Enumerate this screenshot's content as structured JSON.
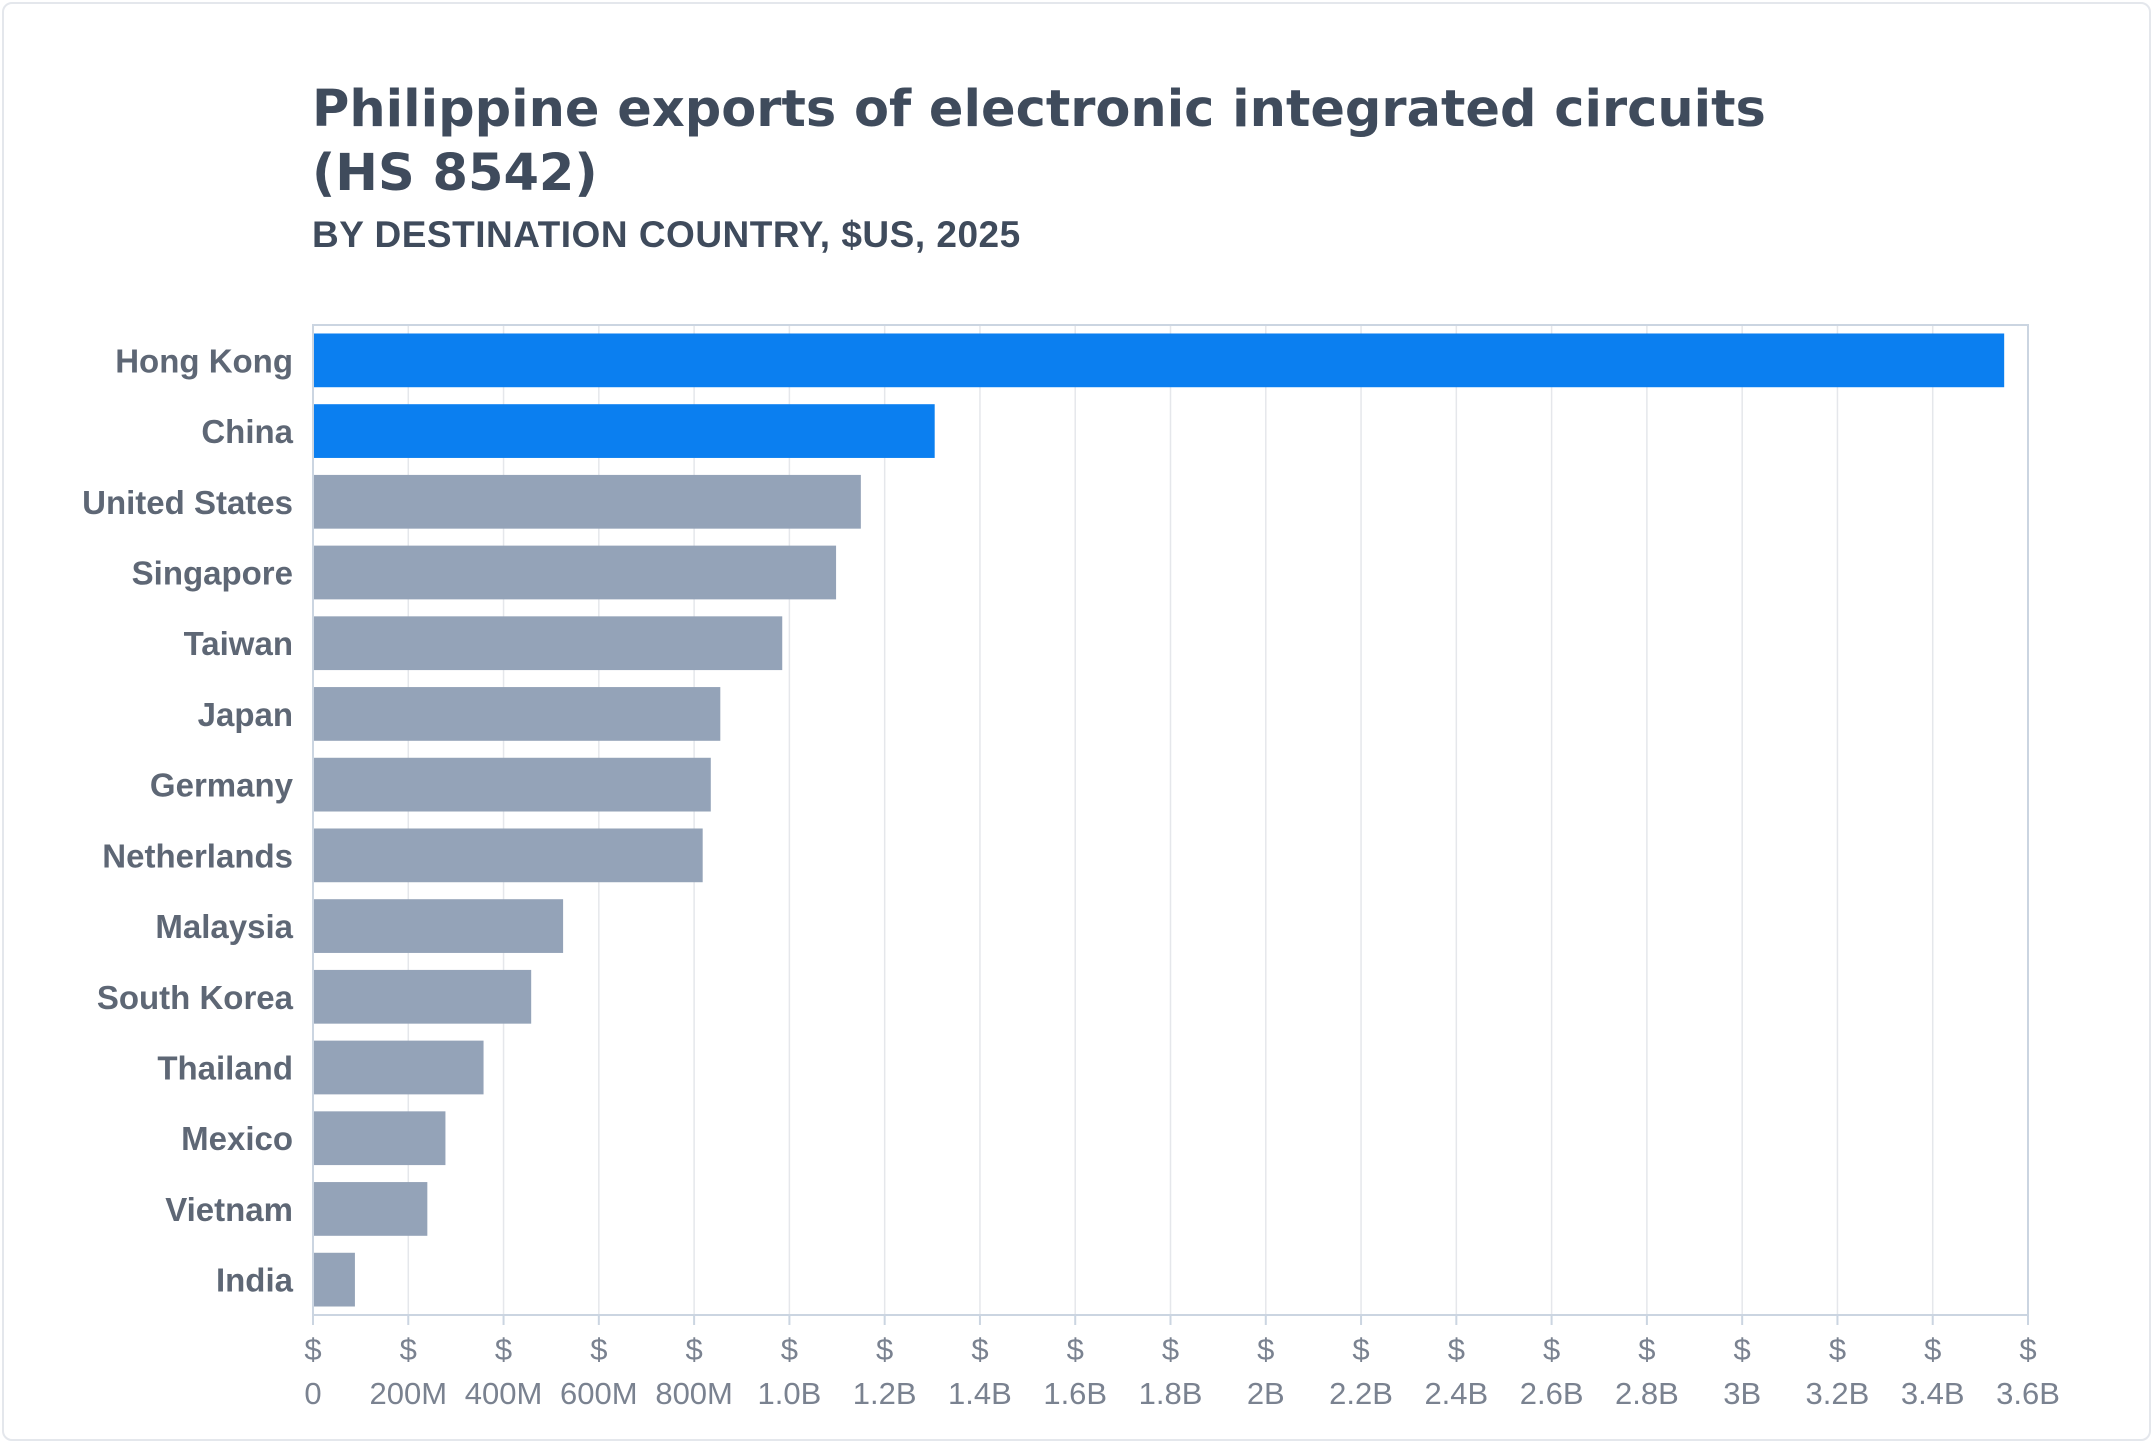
{
  "chart_data": {
    "type": "bar",
    "orientation": "horizontal",
    "title": "Philippine exports of electronic integrated circuits (HS 8542)",
    "subtitle": "BY DESTINATION COUNTRY, $US, 2025",
    "categories": [
      "Hong Kong",
      "China",
      "United States",
      "Singapore",
      "Taiwan",
      "Japan",
      "Germany",
      "Netherlands",
      "Malaysia",
      "South Korea",
      "Thailand",
      "Mexico",
      "Vietnam",
      "India"
    ],
    "values": [
      3550000000,
      1305000000,
      1150000000,
      1098000000,
      985000000,
      855000000,
      835000000,
      818000000,
      525000000,
      458000000,
      358000000,
      278000000,
      240000000,
      88000000
    ],
    "highlight_categories": [
      "Hong Kong",
      "China"
    ],
    "colors": {
      "highlight": "#0b7ff0",
      "default": "#94a3b8",
      "grid": "#e5e7eb",
      "axis": "#cbd5e1"
    },
    "xlim": [
      0,
      3600000000
    ],
    "xticks": [
      {
        "value": 0,
        "top": "$",
        "bottom": "0"
      },
      {
        "value": 200000000,
        "top": "$",
        "bottom": "200M"
      },
      {
        "value": 400000000,
        "top": "$",
        "bottom": "400M"
      },
      {
        "value": 600000000,
        "top": "$",
        "bottom": "600M"
      },
      {
        "value": 800000000,
        "top": "$",
        "bottom": "800M"
      },
      {
        "value": 1000000000,
        "top": "$",
        "bottom": "1.0B"
      },
      {
        "value": 1200000000,
        "top": "$",
        "bottom": "1.2B"
      },
      {
        "value": 1400000000,
        "top": "$",
        "bottom": "1.4B"
      },
      {
        "value": 1600000000,
        "top": "$",
        "bottom": "1.6B"
      },
      {
        "value": 1800000000,
        "top": "$",
        "bottom": "1.8B"
      },
      {
        "value": 2000000000,
        "top": "$",
        "bottom": "2B"
      },
      {
        "value": 2200000000,
        "top": "$",
        "bottom": "2.2B"
      },
      {
        "value": 2400000000,
        "top": "$",
        "bottom": "2.4B"
      },
      {
        "value": 2600000000,
        "top": "$",
        "bottom": "2.6B"
      },
      {
        "value": 2800000000,
        "top": "$",
        "bottom": "2.8B"
      },
      {
        "value": 3000000000,
        "top": "$",
        "bottom": "3B"
      },
      {
        "value": 3200000000,
        "top": "$",
        "bottom": "3.2B"
      },
      {
        "value": 3400000000,
        "top": "$",
        "bottom": "3.4B"
      },
      {
        "value": 3600000000,
        "top": "$",
        "bottom": "3.6B"
      }
    ],
    "grid": true
  }
}
